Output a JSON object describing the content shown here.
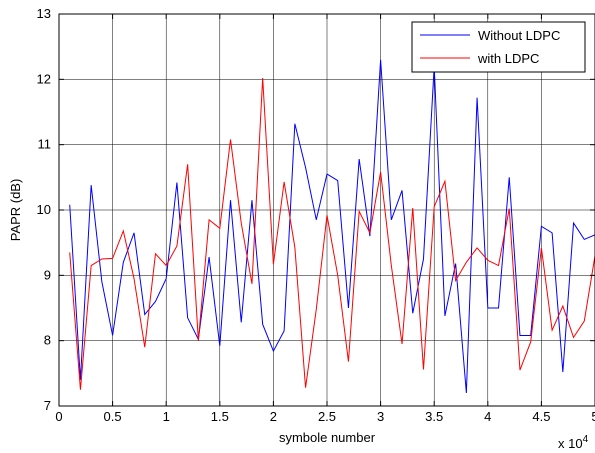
{
  "chart_data": {
    "type": "line",
    "title": "",
    "xlabel": "symbole number",
    "ylabel": "PAPR (dB)",
    "x_multiplier_label": "x 10",
    "x_multiplier_exp": "4",
    "xlim": [
      0,
      5
    ],
    "ylim": [
      7,
      13
    ],
    "x_ticks": [
      0,
      0.5,
      1,
      1.5,
      2,
      2.5,
      3,
      3.5,
      4,
      4.5,
      5
    ],
    "x_tick_labels": [
      "0",
      "0.5",
      "1",
      "1.5",
      "2",
      "2.5",
      "3",
      "3.5",
      "4",
      "4.5",
      "5"
    ],
    "y_ticks": [
      7,
      8,
      9,
      10,
      11,
      12,
      13
    ],
    "y_tick_labels": [
      "7",
      "8",
      "9",
      "10",
      "11",
      "12",
      "13"
    ],
    "grid": true,
    "legend_position": "top-right",
    "x": [
      0.1,
      0.2,
      0.3,
      0.4,
      0.5,
      0.6,
      0.7,
      0.8,
      0.9,
      1.0,
      1.1,
      1.2,
      1.3,
      1.4,
      1.5,
      1.6,
      1.7,
      1.8,
      1.9,
      2.0,
      2.1,
      2.2,
      2.3,
      2.4,
      2.5,
      2.6,
      2.7,
      2.8,
      2.9,
      3.0,
      3.1,
      3.2,
      3.3,
      3.4,
      3.5,
      3.6,
      3.7,
      3.8,
      3.9,
      4.0,
      4.1,
      4.2,
      4.3,
      4.4,
      4.5,
      4.6,
      4.7,
      4.8,
      4.9,
      5.0
    ],
    "series": [
      {
        "name": "Without LDPC",
        "color": "#0000ff",
        "values": [
          10.08,
          7.4,
          10.38,
          8.9,
          8.08,
          9.2,
          9.65,
          8.4,
          8.6,
          8.95,
          10.42,
          8.35,
          8.02,
          9.28,
          7.92,
          10.15,
          8.28,
          10.15,
          8.25,
          7.84,
          8.15,
          11.32,
          10.65,
          9.85,
          10.55,
          10.45,
          8.5,
          10.78,
          9.6,
          12.3,
          9.85,
          10.3,
          8.42,
          9.25,
          12.2,
          8.38,
          9.18,
          7.2,
          11.72,
          8.5,
          8.5,
          10.5,
          8.08,
          8.08,
          9.75,
          9.65,
          7.52,
          9.8,
          9.55,
          9.62
        ]
      },
      {
        "name": "with LDPC",
        "color": "#ff0000",
        "values": [
          9.35,
          7.25,
          9.15,
          9.25,
          9.26,
          9.68,
          8.95,
          7.9,
          9.33,
          9.15,
          9.45,
          10.7,
          8.0,
          9.85,
          9.72,
          11.08,
          9.8,
          8.87,
          12.02,
          9.17,
          10.43,
          9.43,
          7.28,
          8.48,
          9.92,
          9.0,
          7.68,
          9.98,
          9.65,
          10.58,
          9.15,
          7.95,
          10.03,
          7.56,
          10.05,
          10.44,
          8.92,
          9.2,
          9.42,
          9.23,
          9.15,
          10.02,
          7.55,
          7.98,
          9.42,
          8.16,
          8.53,
          8.05,
          8.3,
          9.3
        ]
      }
    ]
  }
}
